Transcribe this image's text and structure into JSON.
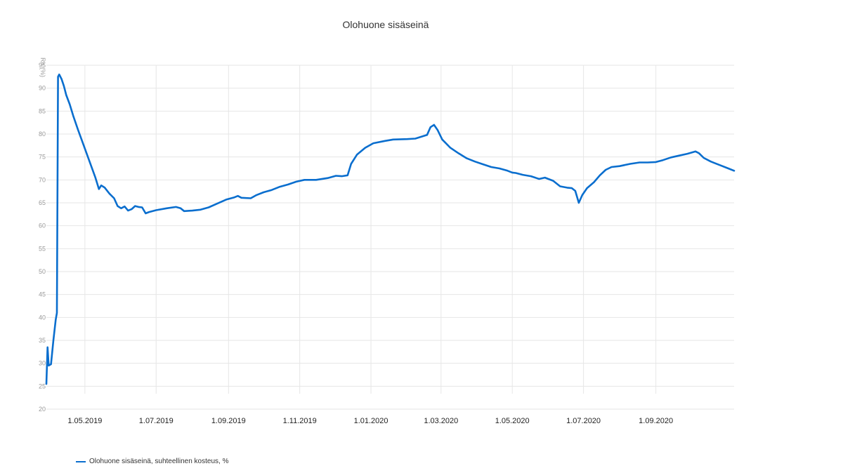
{
  "chart_data": {
    "type": "line",
    "title": "Olohuone sisäseinä",
    "ylabel": "Rh (%)",
    "xlabel": "",
    "ylim": [
      20,
      95
    ],
    "yticks": [
      "20",
      "25",
      "30",
      "35",
      "40",
      "45",
      "50",
      "55",
      "60",
      "65",
      "70",
      "75",
      "80",
      "85",
      "90",
      "95"
    ],
    "xlim": [
      "2019-03-29",
      "2020-11-07"
    ],
    "xticks": [
      {
        "date": "2019-05-01",
        "label": "1.05.2019"
      },
      {
        "date": "2019-07-01",
        "label": "1.07.2019"
      },
      {
        "date": "2019-09-01",
        "label": "1.09.2019"
      },
      {
        "date": "2019-11-01",
        "label": "1.11.2019"
      },
      {
        "date": "2020-01-01",
        "label": "1.01.2020"
      },
      {
        "date": "2020-03-01",
        "label": "1.03.2020"
      },
      {
        "date": "2020-05-01",
        "label": "1.05.2020"
      },
      {
        "date": "2020-07-01",
        "label": "1.07.2020"
      },
      {
        "date": "2020-09-01",
        "label": "1.09.2020"
      }
    ],
    "grid": true,
    "legend_position": "bottom-left",
    "color": "#0A6ECE",
    "series": [
      {
        "name": "Olohuone sisäseinä, suhteellinen kosteus, %",
        "points": [
          [
            "2019-03-29",
            25.5
          ],
          [
            "2019-03-30",
            33.5
          ],
          [
            "2019-03-31",
            29.5
          ],
          [
            "2019-04-02",
            29.8
          ],
          [
            "2019-04-04",
            35.0
          ],
          [
            "2019-04-06",
            39.5
          ],
          [
            "2019-04-07",
            41.0
          ],
          [
            "2019-04-08",
            92.5
          ],
          [
            "2019-04-09",
            93.0
          ],
          [
            "2019-04-11",
            92.0
          ],
          [
            "2019-04-13",
            90.5
          ],
          [
            "2019-04-15",
            88.5
          ],
          [
            "2019-04-18",
            86.5
          ],
          [
            "2019-04-21",
            84.0
          ],
          [
            "2019-04-25",
            81.0
          ],
          [
            "2019-04-30",
            77.5
          ],
          [
            "2019-05-05",
            74.0
          ],
          [
            "2019-05-10",
            70.5
          ],
          [
            "2019-05-13",
            68.0
          ],
          [
            "2019-05-15",
            68.8
          ],
          [
            "2019-05-18",
            68.3
          ],
          [
            "2019-05-22",
            67.0
          ],
          [
            "2019-05-26",
            66.0
          ],
          [
            "2019-05-29",
            64.3
          ],
          [
            "2019-06-01",
            63.8
          ],
          [
            "2019-06-04",
            64.2
          ],
          [
            "2019-06-07",
            63.3
          ],
          [
            "2019-06-10",
            63.6
          ],
          [
            "2019-06-13",
            64.3
          ],
          [
            "2019-06-16",
            64.1
          ],
          [
            "2019-06-19",
            64.0
          ],
          [
            "2019-06-22",
            62.7
          ],
          [
            "2019-06-25",
            63.0
          ],
          [
            "2019-07-01",
            63.4
          ],
          [
            "2019-07-10",
            63.8
          ],
          [
            "2019-07-18",
            64.1
          ],
          [
            "2019-07-22",
            63.8
          ],
          [
            "2019-07-25",
            63.2
          ],
          [
            "2019-08-01",
            63.3
          ],
          [
            "2019-08-08",
            63.5
          ],
          [
            "2019-08-15",
            64.0
          ],
          [
            "2019-08-22",
            64.8
          ],
          [
            "2019-08-30",
            65.7
          ],
          [
            "2019-09-06",
            66.2
          ],
          [
            "2019-09-09",
            66.5
          ],
          [
            "2019-09-12",
            66.1
          ],
          [
            "2019-09-20",
            66.0
          ],
          [
            "2019-09-25",
            66.7
          ],
          [
            "2019-10-01",
            67.3
          ],
          [
            "2019-10-08",
            67.8
          ],
          [
            "2019-10-15",
            68.5
          ],
          [
            "2019-10-22",
            69.0
          ],
          [
            "2019-10-29",
            69.6
          ],
          [
            "2019-11-05",
            70.0
          ],
          [
            "2019-11-15",
            70.0
          ],
          [
            "2019-11-25",
            70.4
          ],
          [
            "2019-12-02",
            70.9
          ],
          [
            "2019-12-07",
            70.8
          ],
          [
            "2019-12-12",
            71.0
          ],
          [
            "2019-12-15",
            73.5
          ],
          [
            "2019-12-20",
            75.5
          ],
          [
            "2019-12-27",
            77.0
          ],
          [
            "2020-01-03",
            78.0
          ],
          [
            "2020-01-13",
            78.5
          ],
          [
            "2020-01-20",
            78.8
          ],
          [
            "2020-02-01",
            78.9
          ],
          [
            "2020-02-08",
            79.0
          ],
          [
            "2020-02-13",
            79.4
          ],
          [
            "2020-02-18",
            79.8
          ],
          [
            "2020-02-21",
            81.5
          ],
          [
            "2020-02-24",
            82.0
          ],
          [
            "2020-02-27",
            80.9
          ],
          [
            "2020-03-02",
            78.8
          ],
          [
            "2020-03-09",
            77.0
          ],
          [
            "2020-03-16",
            75.8
          ],
          [
            "2020-03-23",
            74.7
          ],
          [
            "2020-03-30",
            74.0
          ],
          [
            "2020-04-06",
            73.4
          ],
          [
            "2020-04-13",
            72.8
          ],
          [
            "2020-04-20",
            72.5
          ],
          [
            "2020-04-27",
            72.0
          ],
          [
            "2020-05-01",
            71.6
          ],
          [
            "2020-05-04",
            71.5
          ],
          [
            "2020-05-10",
            71.1
          ],
          [
            "2020-05-17",
            70.8
          ],
          [
            "2020-05-24",
            70.2
          ],
          [
            "2020-05-29",
            70.5
          ],
          [
            "2020-06-05",
            69.8
          ],
          [
            "2020-06-11",
            68.6
          ],
          [
            "2020-06-17",
            68.3
          ],
          [
            "2020-06-21",
            68.2
          ],
          [
            "2020-06-24",
            67.6
          ],
          [
            "2020-06-27",
            65.0
          ],
          [
            "2020-06-30",
            66.7
          ],
          [
            "2020-07-04",
            68.2
          ],
          [
            "2020-07-10",
            69.5
          ],
          [
            "2020-07-15",
            71.0
          ],
          [
            "2020-07-20",
            72.2
          ],
          [
            "2020-07-25",
            72.8
          ],
          [
            "2020-08-01",
            73.0
          ],
          [
            "2020-08-10",
            73.5
          ],
          [
            "2020-08-18",
            73.8
          ],
          [
            "2020-08-25",
            73.8
          ],
          [
            "2020-09-01",
            73.9
          ],
          [
            "2020-09-07",
            74.3
          ],
          [
            "2020-09-14",
            74.9
          ],
          [
            "2020-09-21",
            75.3
          ],
          [
            "2020-09-28",
            75.7
          ],
          [
            "2020-10-05",
            76.2
          ],
          [
            "2020-10-08",
            75.8
          ],
          [
            "2020-10-12",
            74.8
          ],
          [
            "2020-10-18",
            74.0
          ],
          [
            "2020-10-26",
            73.2
          ],
          [
            "2020-11-02",
            72.5
          ],
          [
            "2020-11-07",
            72.0
          ]
        ]
      }
    ]
  }
}
